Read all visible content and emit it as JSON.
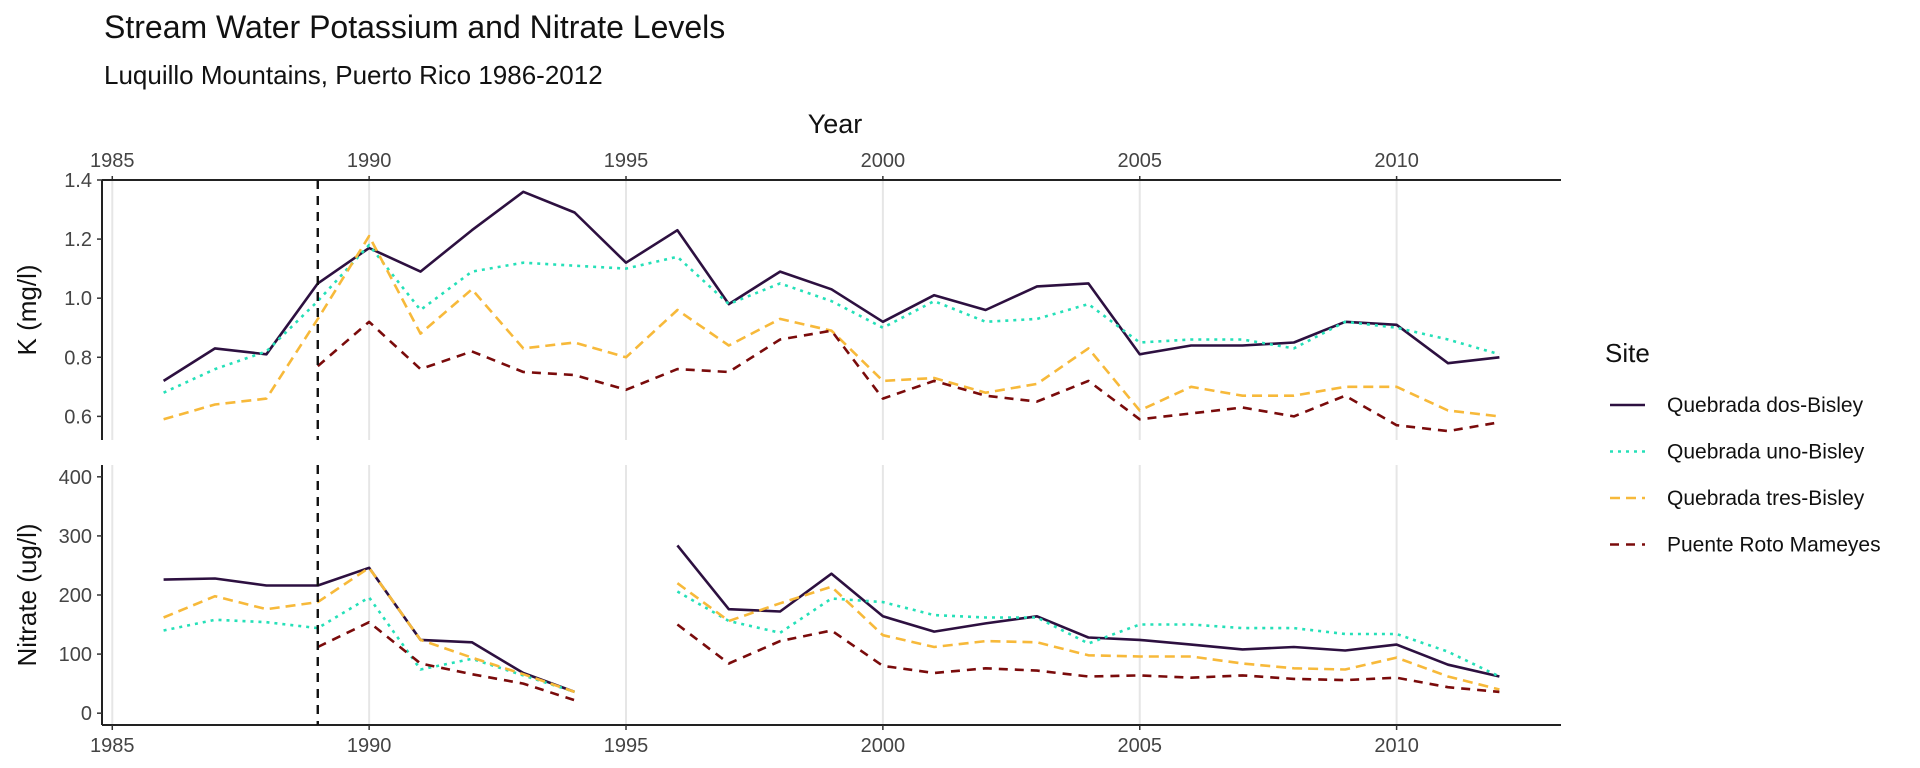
{
  "chart_data": {
    "type": "line",
    "title": "Stream Water Potassium and Nitrate Levels",
    "subtitle": "Luquillo Mountains, Puerto Rico 1986-2012",
    "xlabel": "Year",
    "xlim": [
      1984.8,
      2013.2
    ],
    "xticks": [
      "1985",
      "1990",
      "1995",
      "2000",
      "2005",
      "2010"
    ],
    "reference_line_x": 1989,
    "grid": "vertical major gridlines",
    "legend_title": "Site",
    "legend_position": "right",
    "colors": {
      "Quebrada dos-Bisley": "#2d1040",
      "Quebrada uno-Bisley": "#25e0b8",
      "Quebrada tres-Bisley": "#f7b93a",
      "Puente Roto Mameyes": "#7a0b0b"
    },
    "series_order": [
      "Quebrada dos-Bisley",
      "Quebrada uno-Bisley",
      "Quebrada tres-Bisley",
      "Puente Roto Mameyes"
    ],
    "panels": [
      {
        "ylabel": "K (mg/l)",
        "ylim": [
          0.52,
          1.4
        ],
        "yticks": [
          "0.6",
          "0.8",
          "1.0",
          "1.2",
          "1.4"
        ],
        "x": [
          1986,
          1987,
          1988,
          1989,
          1990,
          1991,
          1992,
          1993,
          1994,
          1995,
          1996,
          1997,
          1998,
          1999,
          2000,
          2001,
          2002,
          2003,
          2004,
          2005,
          2006,
          2007,
          2008,
          2009,
          2010,
          2011,
          2012
        ],
        "series": [
          {
            "name": "Quebrada dos-Bisley",
            "values": [
              0.72,
              0.83,
              0.81,
              1.05,
              1.17,
              1.09,
              1.23,
              1.36,
              1.29,
              1.12,
              1.23,
              0.98,
              1.09,
              1.03,
              0.92,
              1.01,
              0.96,
              1.04,
              1.05,
              0.81,
              0.84,
              0.84,
              0.85,
              0.92,
              0.91,
              0.78,
              0.8
            ]
          },
          {
            "name": "Quebrada uno-Bisley",
            "values": [
              0.68,
              0.76,
              0.82,
              0.99,
              1.18,
              0.96,
              1.09,
              1.12,
              1.11,
              1.1,
              1.14,
              0.98,
              1.05,
              0.99,
              0.9,
              0.99,
              0.92,
              0.93,
              0.98,
              0.85,
              0.86,
              0.86,
              0.83,
              0.92,
              0.9,
              0.86,
              0.81
            ]
          },
          {
            "name": "Quebrada tres-Bisley",
            "values": [
              0.59,
              0.64,
              0.66,
              0.93,
              1.21,
              0.88,
              1.03,
              0.83,
              0.85,
              0.8,
              0.96,
              0.84,
              0.93,
              0.89,
              0.72,
              0.73,
              0.68,
              0.71,
              0.83,
              0.62,
              0.7,
              0.67,
              0.67,
              0.7,
              0.7,
              0.62,
              0.6
            ]
          },
          {
            "name": "Puente Roto Mameyes",
            "values": [
              null,
              null,
              null,
              0.77,
              0.92,
              0.76,
              0.82,
              0.75,
              0.74,
              0.69,
              0.76,
              0.75,
              0.86,
              0.89,
              0.66,
              0.72,
              0.67,
              0.65,
              0.72,
              0.59,
              0.61,
              0.63,
              0.6,
              0.67,
              0.57,
              0.55,
              0.58
            ]
          }
        ]
      },
      {
        "ylabel": "Nitrate (ug/l)",
        "ylim": [
          -20,
          420
        ],
        "yticks": [
          "0",
          "100",
          "200",
          "300",
          "400"
        ],
        "x": [
          1986,
          1987,
          1988,
          1989,
          1990,
          1991,
          1992,
          1993,
          1994,
          1995,
          1996,
          1997,
          1998,
          1999,
          2000,
          2001,
          2002,
          2003,
          2004,
          2005,
          2006,
          2007,
          2008,
          2009,
          2010,
          2011,
          2012
        ],
        "series": [
          {
            "name": "Quebrada dos-Bisley",
            "values": [
              226,
              228,
              216,
              216,
              246,
              124,
              120,
              68,
              36,
              null,
              284,
              176,
              172,
              236,
              164,
              138,
              152,
              164,
              128,
              124,
              116,
              108,
              112,
              106,
              116,
              82,
              62
            ]
          },
          {
            "name": "Quebrada uno-Bisley",
            "values": [
              140,
              158,
              154,
              144,
              196,
              74,
              92,
              64,
              36,
              null,
              206,
              156,
              136,
              194,
              188,
              166,
              162,
              162,
              118,
              150,
              150,
              144,
              144,
              134,
              134,
              104,
              62
            ]
          },
          {
            "name": "Quebrada tres-Bisley",
            "values": [
              162,
              198,
              176,
              188,
              246,
              124,
              94,
              66,
              36,
              null,
              220,
              156,
              186,
              214,
              132,
              112,
              122,
              120,
              98,
              96,
              96,
              84,
              76,
              74,
              94,
              62,
              40
            ]
          },
          {
            "name": "Puente Roto Mameyes",
            "values": [
              null,
              null,
              null,
              112,
              154,
              84,
              66,
              50,
              22,
              null,
              150,
              84,
              122,
              140,
              80,
              68,
              76,
              72,
              62,
              64,
              60,
              64,
              58,
              56,
              60,
              44,
              36
            ]
          }
        ]
      }
    ]
  }
}
